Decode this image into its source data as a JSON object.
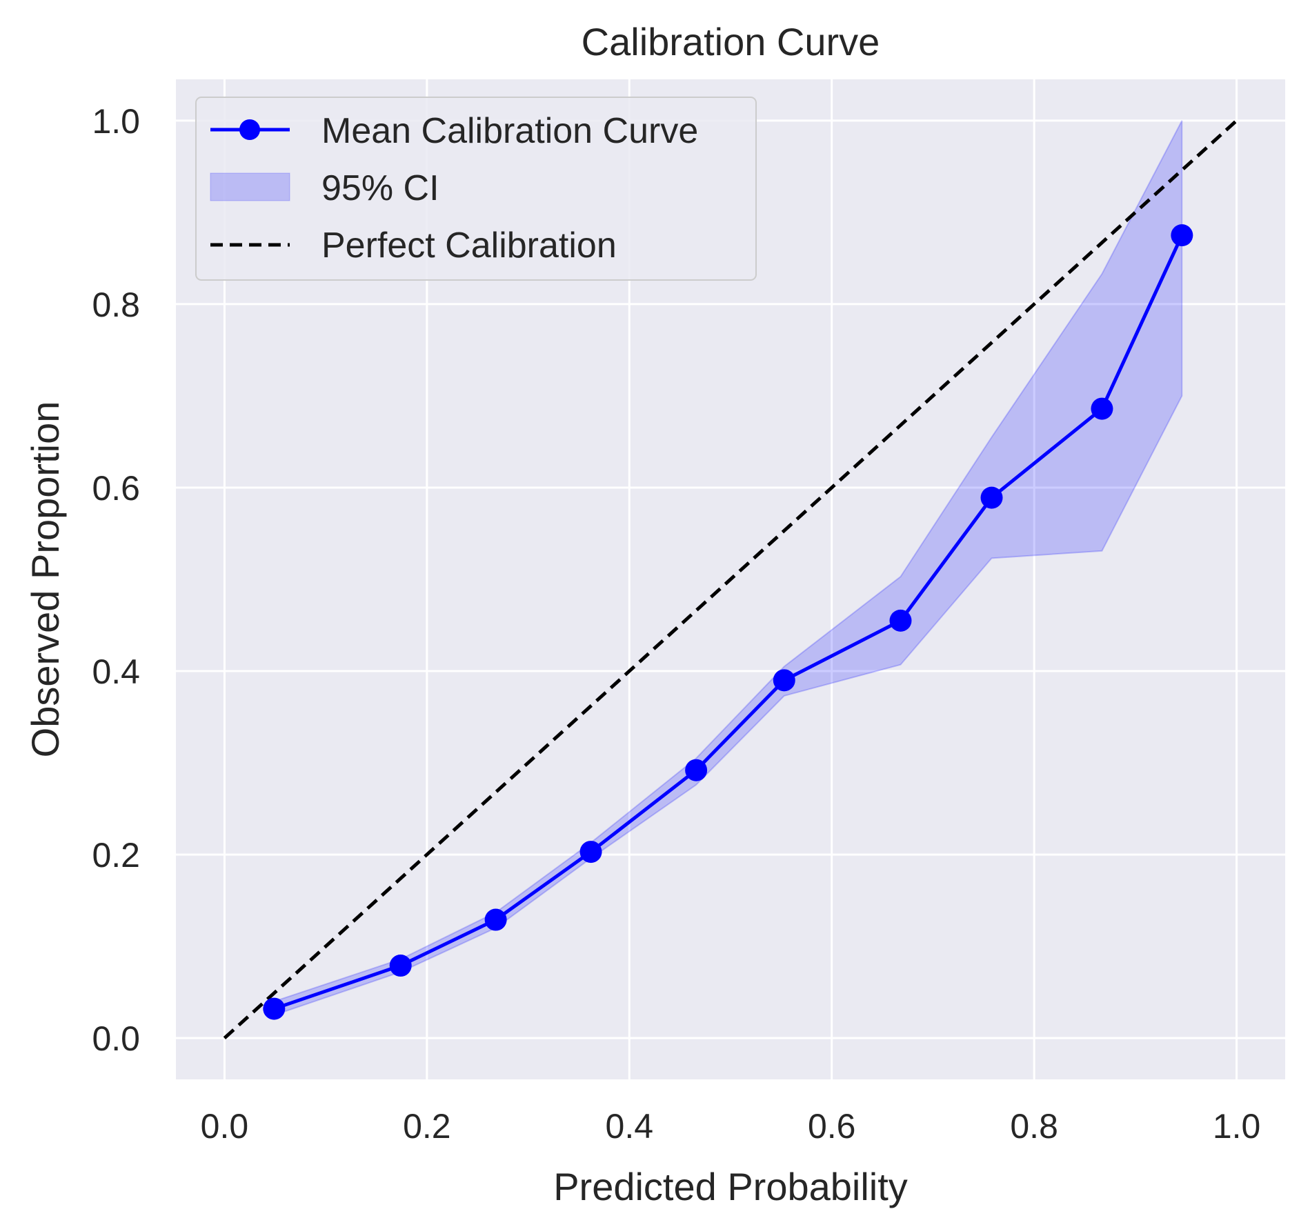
{
  "chart_data": {
    "type": "line",
    "title": "Calibration Curve",
    "xlabel": "Predicted Probability",
    "ylabel": "Observed Proportion",
    "xlim": [
      -0.048,
      1.048
    ],
    "ylim": [
      -0.045,
      1.045
    ],
    "xticks": [
      0.0,
      0.2,
      0.4,
      0.6,
      0.8,
      1.0
    ],
    "xtick_labels": [
      "0.0",
      "0.2",
      "0.4",
      "0.6",
      "0.8",
      "1.0"
    ],
    "yticks": [
      0.0,
      0.2,
      0.4,
      0.6,
      0.8,
      1.0
    ],
    "ytick_labels": [
      "0.0",
      "0.2",
      "0.4",
      "0.6",
      "0.8",
      "1.0"
    ],
    "grid": true,
    "legend_position": "top-left",
    "series": [
      {
        "name": "Mean Calibration Curve",
        "kind": "line-marker",
        "color": "#0000ff",
        "x": [
          0.049,
          0.174,
          0.268,
          0.362,
          0.466,
          0.553,
          0.668,
          0.758,
          0.867,
          0.946
        ],
        "y": [
          0.032,
          0.079,
          0.129,
          0.203,
          0.292,
          0.39,
          0.455,
          0.589,
          0.686,
          0.875
        ]
      },
      {
        "name": "95% CI",
        "kind": "band",
        "color": "#0000ff",
        "opacity": 0.2,
        "x": [
          0.049,
          0.174,
          0.268,
          0.362,
          0.466,
          0.553,
          0.668,
          0.758,
          0.867,
          0.946
        ],
        "lower": [
          0.025,
          0.072,
          0.12,
          0.196,
          0.276,
          0.373,
          0.407,
          0.523,
          0.531,
          0.7
        ],
        "upper": [
          0.04,
          0.086,
          0.137,
          0.213,
          0.305,
          0.405,
          0.503,
          0.655,
          0.833,
          1.0
        ]
      },
      {
        "name": "Perfect Calibration",
        "kind": "dashed-line",
        "color": "#000000",
        "x": [
          0.0,
          1.0
        ],
        "y": [
          0.0,
          1.0
        ]
      }
    ]
  },
  "colors": {
    "plot_background": "#eaeaf2",
    "grid": "#ffffff",
    "mean_curve": "#0000ff",
    "ci_band": "#0000ff",
    "perfect_line": "#000000"
  }
}
